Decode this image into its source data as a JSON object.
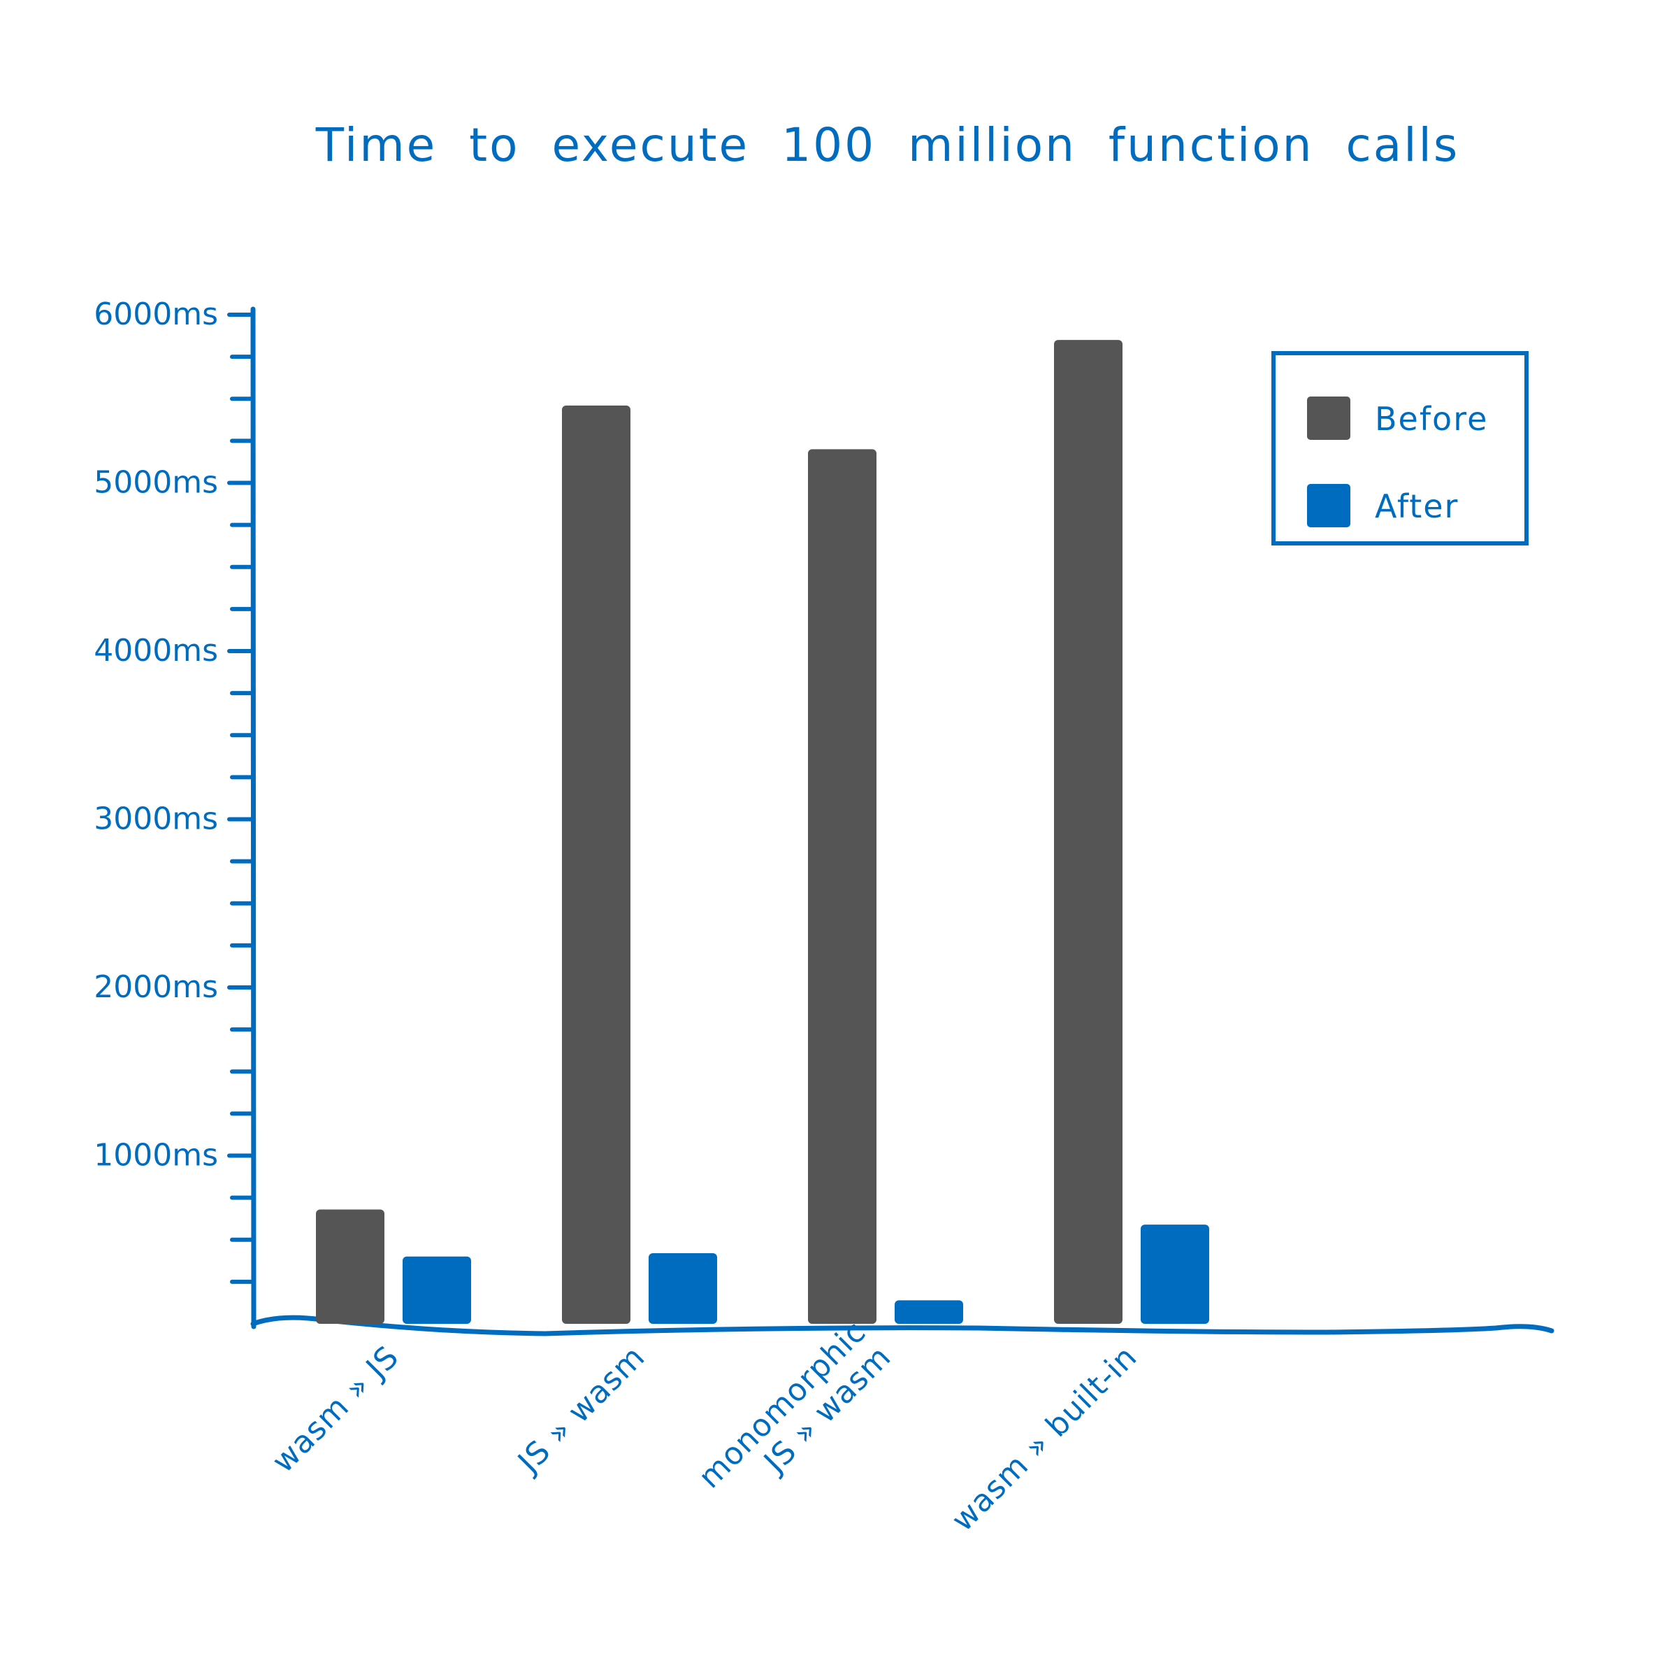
{
  "chart_data": {
    "type": "bar",
    "title": "Time to execute 100 million function calls",
    "xlabel": "",
    "ylabel": "",
    "categories": [
      [
        "wasm » JS"
      ],
      [
        "JS » wasm"
      ],
      [
        "monomorphic",
        "JS » wasm"
      ],
      [
        "wasm » built-in"
      ]
    ],
    "series": [
      {
        "name": "Before",
        "color": "#555555",
        "values": [
          680,
          5460,
          5200,
          5850
        ]
      },
      {
        "name": "After",
        "color": "#006cc0",
        "values": [
          400,
          420,
          140,
          590
        ]
      }
    ],
    "ylim": [
      0,
      6000
    ],
    "y_ticks": [
      {
        "value": 1000,
        "label": "1000ms"
      },
      {
        "value": 2000,
        "label": "2000ms"
      },
      {
        "value": 3000,
        "label": "3000ms"
      },
      {
        "value": 4000,
        "label": "4000ms"
      },
      {
        "value": 5000,
        "label": "5000ms"
      },
      {
        "value": 6000,
        "label": "6000ms"
      }
    ],
    "minor_tick_step": 250,
    "grid": false,
    "legend_position": "top-right",
    "axis_color": "#006cc0"
  }
}
